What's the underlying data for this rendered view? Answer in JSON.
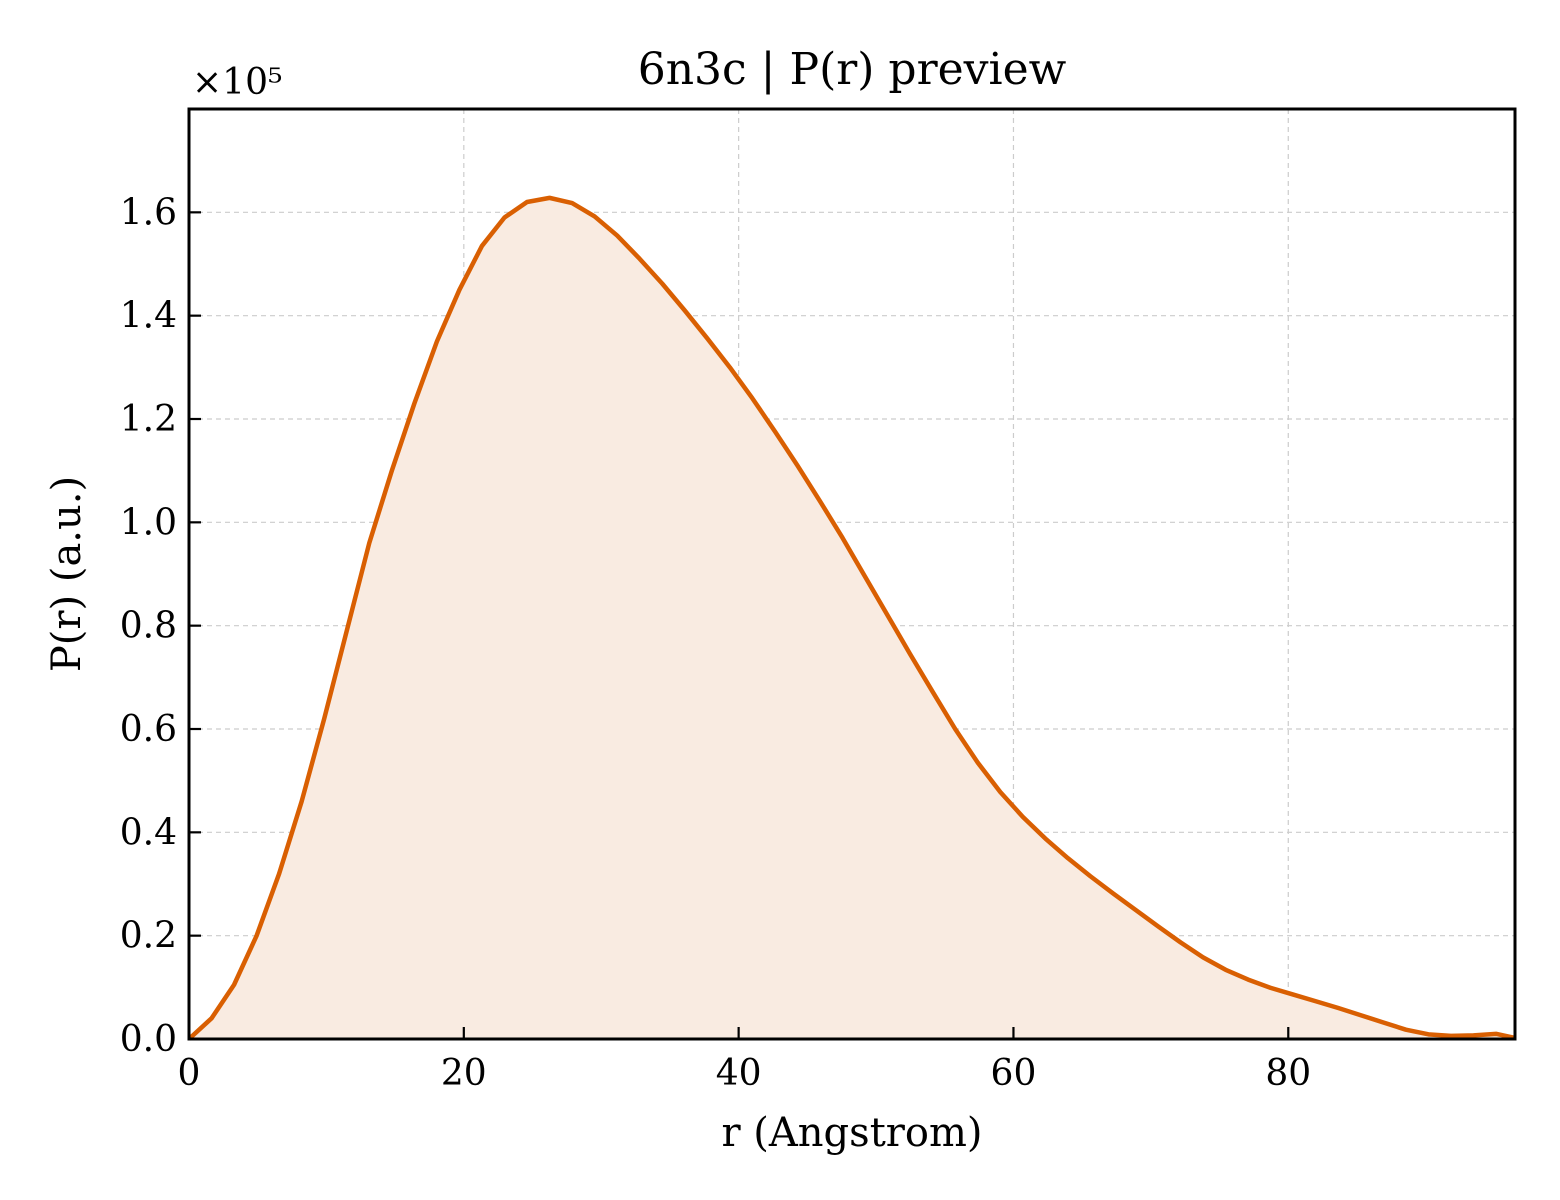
{
  "chart_data": {
    "type": "area",
    "title": "6n3c | P(r) preview",
    "xlabel": "r (Angstrom)",
    "ylabel": "P(r) (a.u.)",
    "y_multiplier_label": "×10⁵",
    "xlim": [
      0,
      96.5
    ],
    "ylim": [
      0,
      1.8
    ],
    "xticks": [
      0,
      20,
      40,
      60,
      80
    ],
    "xtick_labels": [
      "0",
      "20",
      "40",
      "60",
      "80"
    ],
    "yticks": [
      0.0,
      0.2,
      0.4,
      0.6,
      0.8,
      1.0,
      1.2,
      1.4,
      1.6
    ],
    "ytick_labels": [
      "0.0",
      "0.2",
      "0.4",
      "0.6",
      "0.8",
      "1.0",
      "1.2",
      "1.4",
      "1.6"
    ],
    "grid": true,
    "line_color": "#d95f02",
    "fill_color": "#f9ebe1",
    "series": [
      {
        "x": [
          0,
          1.64,
          3.28,
          4.92,
          6.56,
          8.2,
          9.84,
          11.48,
          13.12,
          14.76,
          16.4,
          18.04,
          19.68,
          21.32,
          22.96,
          24.6,
          26.24,
          27.88,
          29.52,
          31.16,
          32.8,
          34.44,
          36.08,
          37.72,
          39.36,
          41.0,
          42.64,
          44.28,
          45.92,
          47.56,
          49.2,
          50.84,
          52.48,
          54.12,
          55.76,
          57.4,
          59.04,
          60.68,
          62.32,
          63.96,
          65.6,
          67.24,
          68.88,
          70.52,
          72.16,
          73.8,
          75.44,
          77.08,
          78.72,
          80.36,
          82.0,
          83.64,
          85.28,
          86.92,
          88.56,
          90.2,
          91.84,
          93.48,
          95.12,
          96.5
        ],
        "y": [
          0.0,
          0.04,
          0.105,
          0.2,
          0.32,
          0.46,
          0.62,
          0.79,
          0.96,
          1.1,
          1.23,
          1.35,
          1.45,
          1.535,
          1.59,
          1.62,
          1.628,
          1.618,
          1.592,
          1.555,
          1.51,
          1.462,
          1.41,
          1.356,
          1.3,
          1.24,
          1.176,
          1.11,
          1.041,
          0.97,
          0.895,
          0.82,
          0.745,
          0.672,
          0.6,
          0.535,
          0.478,
          0.43,
          0.388,
          0.35,
          0.315,
          0.282,
          0.25,
          0.218,
          0.187,
          0.158,
          0.134,
          0.115,
          0.099,
          0.086,
          0.073,
          0.06,
          0.046,
          0.032,
          0.018,
          0.009,
          0.006,
          0.007,
          0.01,
          0.002
        ]
      }
    ]
  }
}
